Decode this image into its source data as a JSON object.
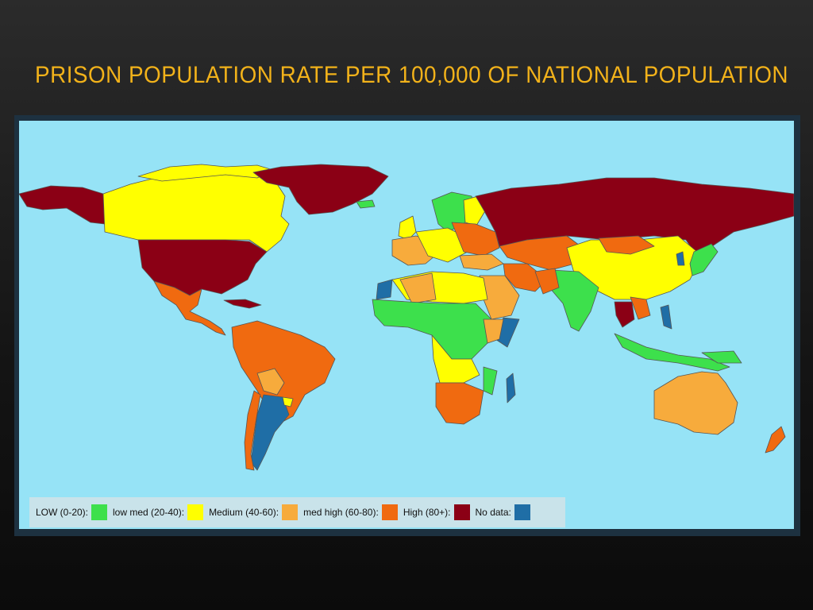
{
  "slide": {
    "title": "PRISON POPULATION RATE PER 100,000 OF NATIONAL POPULATION"
  },
  "map": {
    "ocean_color": "#96e3f6",
    "border_color": "#555555",
    "legend": [
      {
        "label": "LOW (0-20):",
        "color": "#3de04c"
      },
      {
        "label": "low med (20-40):",
        "color": "#ffff00"
      },
      {
        "label": "Medium (40-60):",
        "color": "#f7ab3c"
      },
      {
        "label": "med high (60-80):",
        "color": "#f06a10"
      },
      {
        "label": "High (80+):",
        "color": "#8b0015"
      },
      {
        "label": "No data:",
        "color": "#1f6ea6"
      }
    ]
  }
}
